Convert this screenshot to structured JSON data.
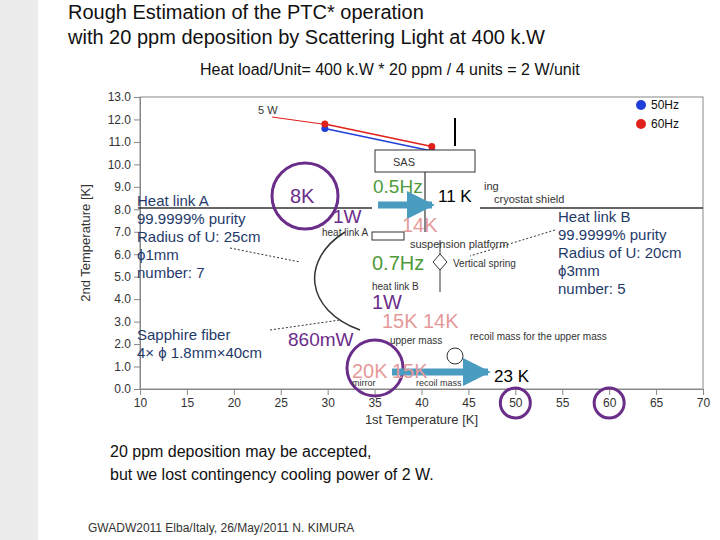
{
  "slide": {
    "title": [
      "Rough Estimation of the PTC* operation",
      "with 20 ppm deposition by Scattering Light at  400 k.W"
    ],
    "subtitle": "Heat load/Unit= 400 k.W * 20 ppm / 4 units = 2 W/unit",
    "conclusion": [
      "20 ppm deposition may be accepted,",
      "but we lost contingency cooling power of 2 W."
    ],
    "footer": "GWADW2011 Elba/Italy, 26/May/2011 N. KIMURA"
  },
  "chart_data": {
    "type": "line",
    "x_label": "1st Temperature [K]",
    "y_label": "2nd Temperature [K]",
    "xlim": [
      10,
      70
    ],
    "ylim": [
      0,
      13
    ],
    "xticks": [
      10,
      15,
      20,
      25,
      30,
      35,
      40,
      45,
      50,
      55,
      60,
      65,
      70
    ],
    "yticks": [
      {
        "value": 0,
        "label": "0.0"
      },
      {
        "value": 1,
        "label": "1.0"
      },
      {
        "value": 2,
        "label": "2.0"
      },
      {
        "value": 3,
        "label": "3.0"
      },
      {
        "value": 4,
        "label": "4.0"
      },
      {
        "value": 5,
        "label": "5.0"
      },
      {
        "value": 6,
        "label": "6.0"
      },
      {
        "value": 7,
        "label": "7.0"
      },
      {
        "value": 8,
        "label": "8.0"
      },
      {
        "value": 9,
        "label": "9.0"
      },
      {
        "value": 10,
        "label": "10.0"
      },
      {
        "value": 11,
        "label": "11.0"
      },
      {
        "value": 12,
        "label": "12.0"
      },
      {
        "value": 13,
        "label": "13.0"
      }
    ],
    "grid": false,
    "legend": "top-right",
    "series": [
      {
        "name": "50Hz",
        "color": "#1f3fd8",
        "marker": "circle",
        "x": [
          29.7,
          41.1
        ],
        "values": [
          11.6,
          10.6
        ]
      },
      {
        "name": "60Hz",
        "color": "#e0201b",
        "marker": "circle",
        "x": [
          29.7,
          41.1
        ],
        "values": [
          11.8,
          10.8
        ]
      }
    ]
  },
  "diagram": {
    "labels": [
      "5 W",
      "SAS",
      "8K",
      "0.5Hz",
      "11 K",
      "ing",
      "1W",
      "heat link A",
      "14K",
      "cryostat shield",
      "suspension platform",
      "Heat link A",
      "99.9999% purity",
      "Radius of U: 25cm",
      "ϕ1mm",
      "number: 7",
      "Heat link B",
      "99.9999% purity",
      "Radius of U: 20cm",
      "ϕ3mm",
      "number: 5",
      "0.7Hz",
      "Vertical spring",
      "heat link B",
      "1W",
      "15K",
      "14K",
      "upper mass",
      "recoil mass for the upper mass",
      "Sapphire fiber",
      "4× ϕ 1.8mm×40cm",
      "860mW",
      "20K",
      "15K",
      "mirror",
      "recoil mass",
      "23 K"
    ]
  }
}
